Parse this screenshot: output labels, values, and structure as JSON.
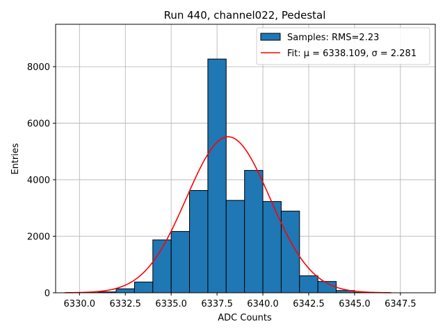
{
  "chart_data": {
    "type": "bar",
    "title": "Run 440, channel022, Pedestal",
    "xlabel": "ADC Counts",
    "ylabel": "Entries",
    "xlim": [
      6328.7,
      6349.4
    ],
    "ylim": [
      0,
      9500
    ],
    "xticks": [
      6330.0,
      6332.5,
      6335.0,
      6337.5,
      6340.0,
      6342.5,
      6345.0,
      6347.5
    ],
    "xtick_labels": [
      "6330.0",
      "6332.5",
      "6335.0",
      "6337.5",
      "6340.0",
      "6342.5",
      "6345.0",
      "6347.5"
    ],
    "yticks": [
      0,
      2000,
      4000,
      6000,
      8000
    ],
    "ytick_labels": [
      "0",
      "2000",
      "4000",
      "6000",
      "8000"
    ],
    "grid": true,
    "legend_position": "top-right",
    "histogram": {
      "name": "Samples: RMS=2.23",
      "color": "#1f77b4",
      "edge_color": "#000000",
      "bins": [
        {
          "x0": 6330.0,
          "x1": 6331.0,
          "value": 5
        },
        {
          "x0": 6331.0,
          "x1": 6332.0,
          "value": 30
        },
        {
          "x0": 6332.0,
          "x1": 6333.0,
          "value": 140
        },
        {
          "x0": 6333.0,
          "x1": 6334.0,
          "value": 380
        },
        {
          "x0": 6334.0,
          "x1": 6335.0,
          "value": 1870
        },
        {
          "x0": 6335.0,
          "x1": 6336.0,
          "value": 2170
        },
        {
          "x0": 6336.0,
          "x1": 6337.0,
          "value": 3620
        },
        {
          "x0": 6337.0,
          "x1": 6338.0,
          "value": 8270
        },
        {
          "x0": 6338.0,
          "x1": 6339.0,
          "value": 3270
        },
        {
          "x0": 6339.0,
          "x1": 6340.0,
          "value": 4330
        },
        {
          "x0": 6340.0,
          "x1": 6341.0,
          "value": 3230
        },
        {
          "x0": 6341.0,
          "x1": 6342.0,
          "value": 2890
        },
        {
          "x0": 6342.0,
          "x1": 6343.0,
          "value": 600
        },
        {
          "x0": 6343.0,
          "x1": 6344.0,
          "value": 400
        },
        {
          "x0": 6344.0,
          "x1": 6345.0,
          "value": 80
        },
        {
          "x0": 6345.0,
          "x1": 6346.0,
          "value": 10
        }
      ]
    },
    "fit": {
      "name": "Fit: μ = 6338.109, σ = 2.281",
      "color": "#ff0000",
      "type": "gaussian",
      "mu": 6338.109,
      "sigma": 2.281,
      "amplitude": 5520,
      "x_range": [
        6329.2,
        6347.0
      ]
    }
  }
}
